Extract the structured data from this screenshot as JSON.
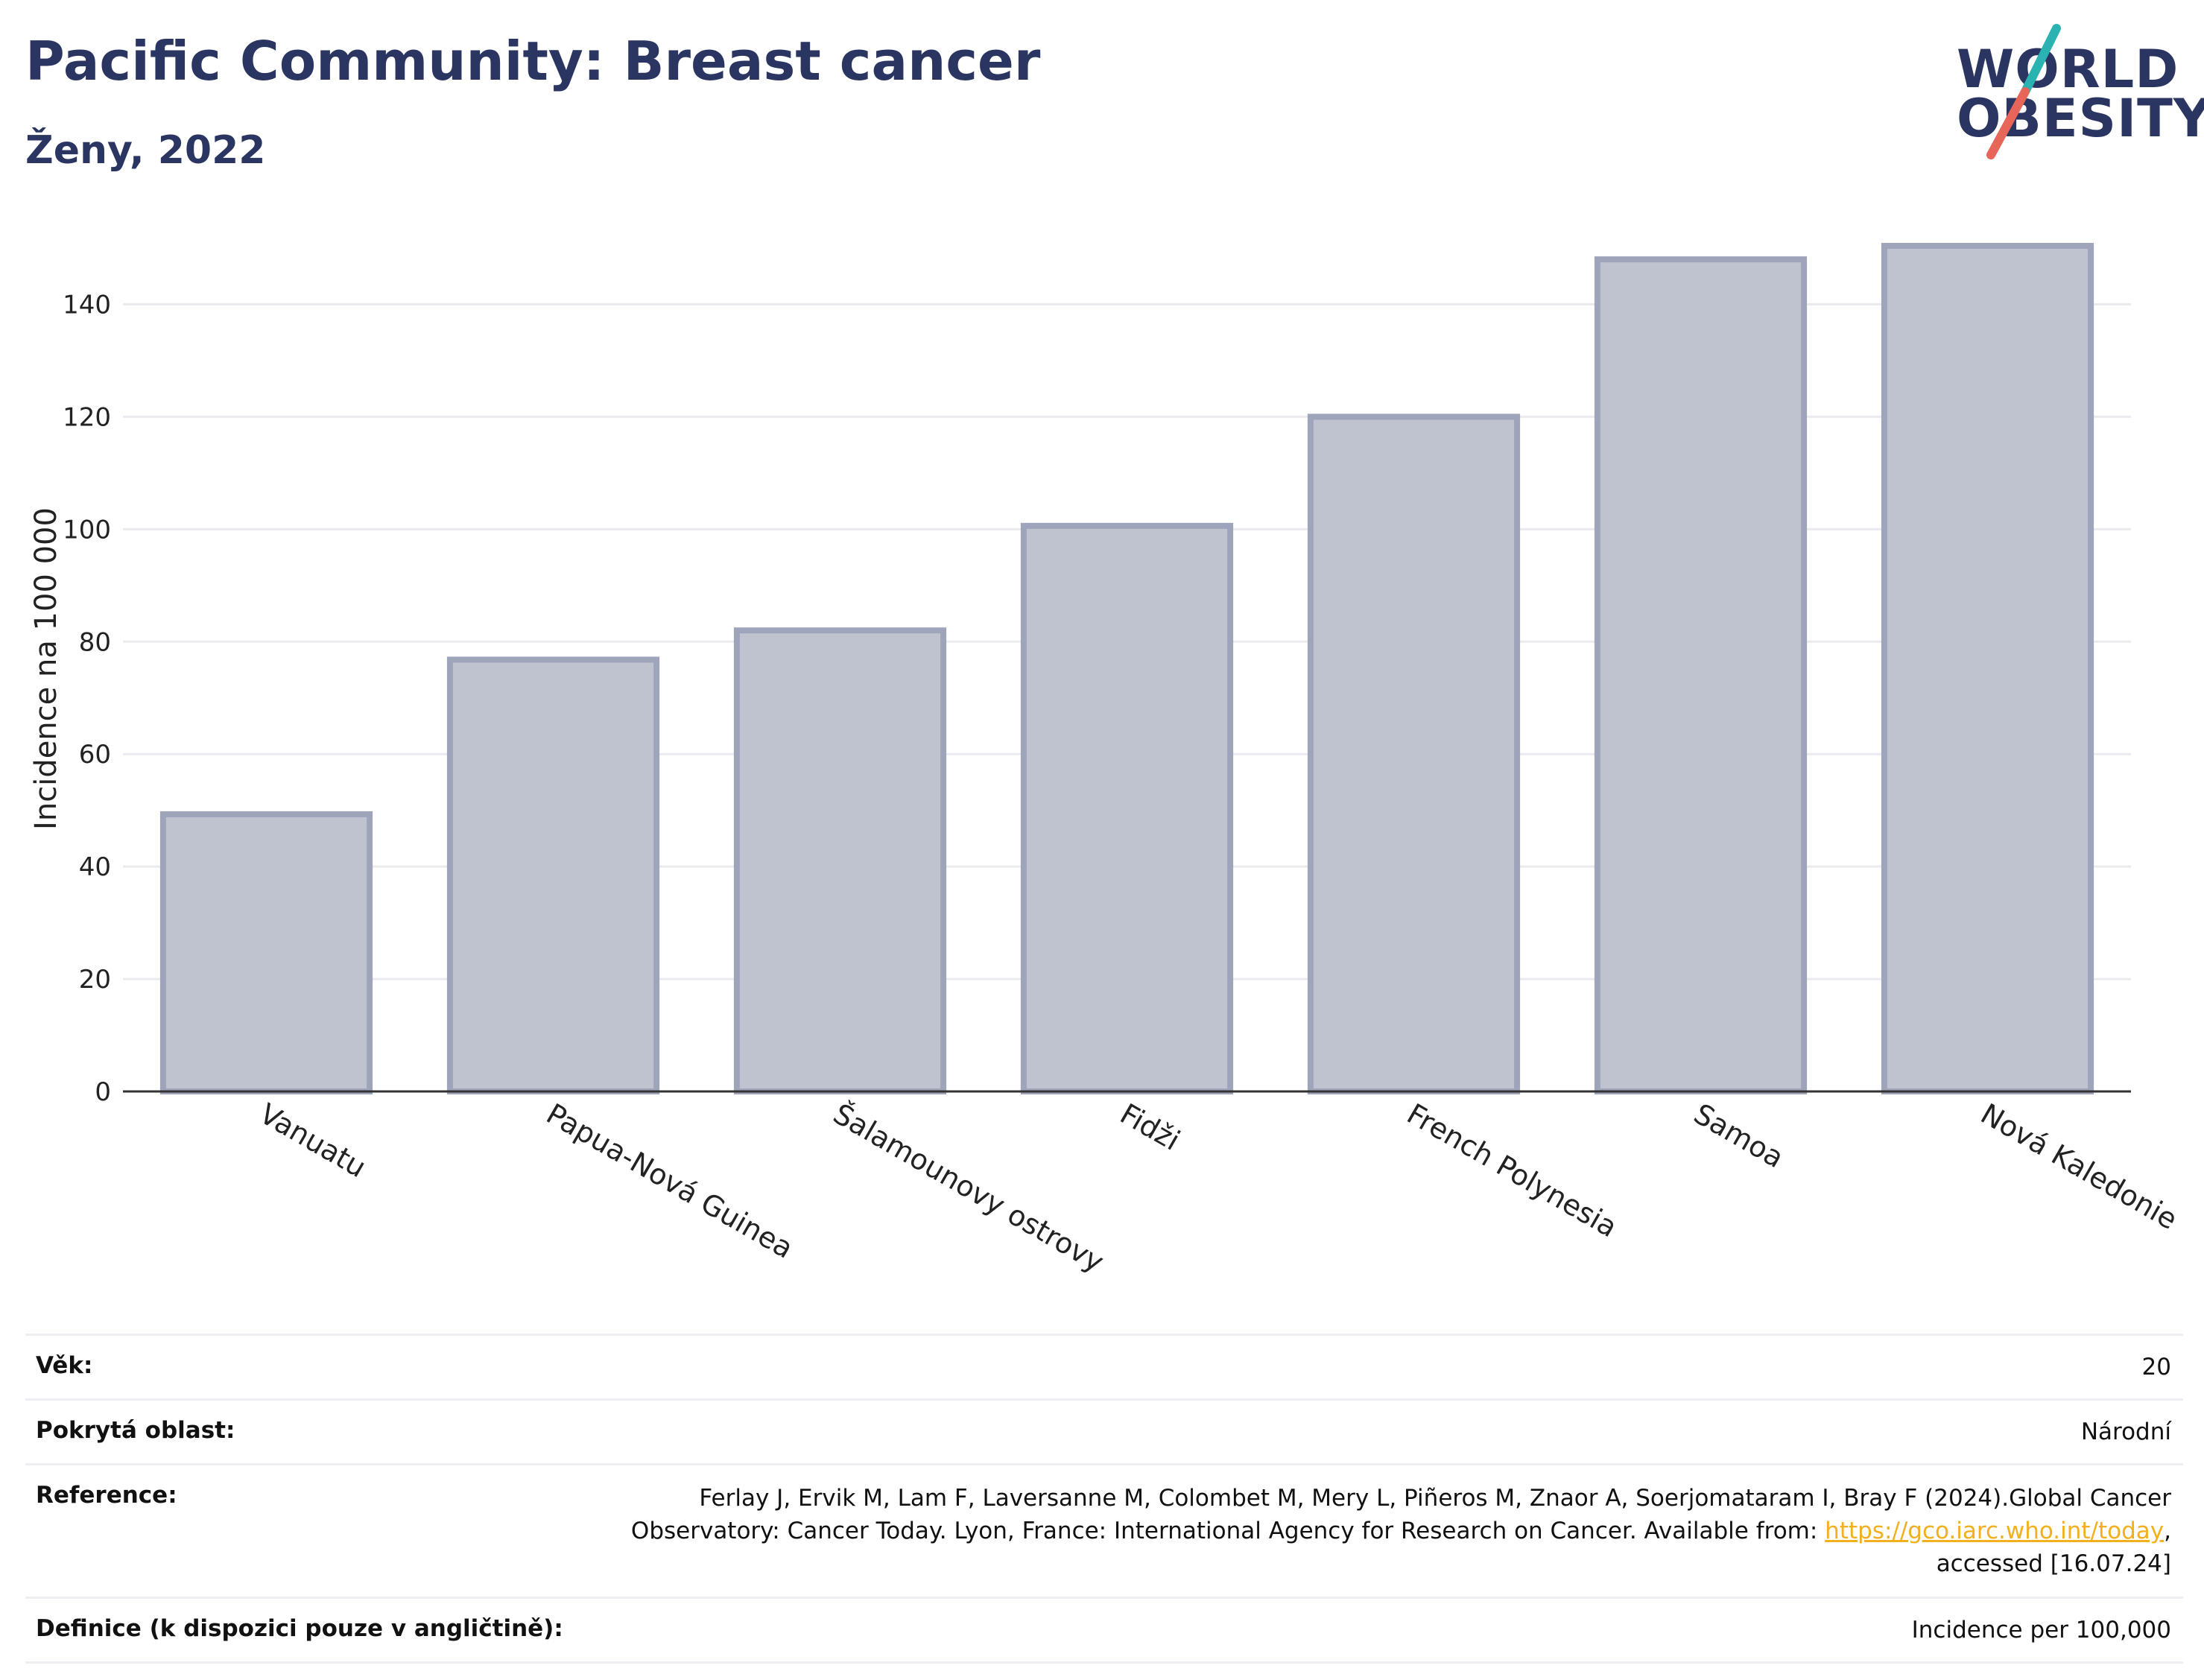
{
  "header": {
    "title": "Pacific Community: Breast cancer",
    "subtitle": "Ženy, 2022"
  },
  "logo": {
    "line1": "WORLD",
    "line2": "OBESITY",
    "colors": {
      "text": "#2b3562",
      "slash_top": "#2bb3b1",
      "slash_bottom": "#e8655a"
    }
  },
  "chart_data": {
    "type": "bar",
    "categories": [
      "Vanuatu",
      "Papua-Nová Guinea",
      "Šalamounovy ostrovy",
      "Fidži",
      "French Polynesia",
      "Samoa",
      "Nová Kaledonie"
    ],
    "values": [
      49.3,
      76.8,
      82.0,
      100.6,
      120.0,
      148.0,
      150.4
    ],
    "ylabel": "Incidence na 100 000",
    "xlabel": "",
    "ylim": [
      0,
      150.4
    ],
    "yticks": [
      0,
      20,
      40,
      60,
      80,
      100,
      120,
      140
    ],
    "grid": true,
    "bar_color": "#bfc3d0",
    "bar_edge_color": "#9ea4ba"
  },
  "info": {
    "age_label": "Věk:",
    "age_value": "20",
    "area_label": "Pokrytá oblast:",
    "area_value": "Národní",
    "reference_label": "Reference:",
    "reference_line1": "Ferlay J, Ervik M, Lam F, Laversanne M, Colombet M, Mery L, Piñeros M, Znaor A, Soerjomataram I, Bray F (2024).Global Cancer",
    "reference_line2": "Observatory: Cancer Today. Lyon, France: International Agency for Research on Cancer. Available from: ",
    "reference_link": "https://gco.iarc.who.int/today",
    "reference_line2_end": ",",
    "reference_line3": "accessed [16.07.24]",
    "definition_label": "Definice (k dispozici pouze v angličtině):",
    "definition_value": "Incidence per 100,000"
  }
}
